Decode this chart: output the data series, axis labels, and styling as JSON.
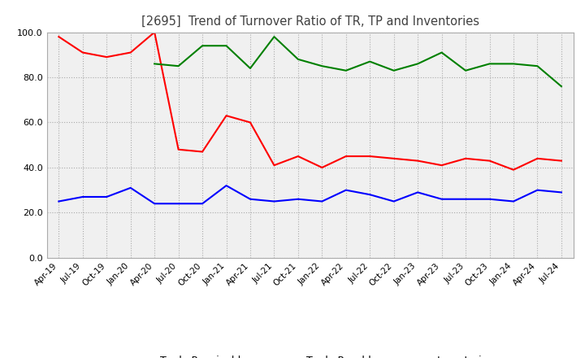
{
  "title": "[2695]  Trend of Turnover Ratio of TR, TP and Inventories",
  "x_labels": [
    "Apr-19",
    "Jul-19",
    "Oct-19",
    "Jan-20",
    "Apr-20",
    "Jul-20",
    "Oct-20",
    "Jan-21",
    "Apr-21",
    "Jul-21",
    "Oct-21",
    "Jan-22",
    "Apr-22",
    "Jul-22",
    "Oct-22",
    "Jan-23",
    "Apr-23",
    "Jul-23",
    "Oct-23",
    "Jan-24",
    "Apr-24",
    "Jul-24"
  ],
  "trade_receivables": [
    98.0,
    91.0,
    89.0,
    91.0,
    100.0,
    48.0,
    47.0,
    63.0,
    60.0,
    41.0,
    45.0,
    40.0,
    45.0,
    45.0,
    44.0,
    43.0,
    41.0,
    44.0,
    43.0,
    39.0,
    44.0,
    43.0
  ],
  "trade_payables": [
    25.0,
    27.0,
    27.0,
    31.0,
    24.0,
    24.0,
    24.0,
    32.0,
    26.0,
    25.0,
    26.0,
    25.0,
    30.0,
    28.0,
    25.0,
    29.0,
    26.0,
    26.0,
    26.0,
    25.0,
    30.0,
    29.0
  ],
  "inventories": [
    null,
    null,
    null,
    null,
    86.0,
    85.0,
    94.0,
    94.0,
    84.0,
    98.0,
    88.0,
    85.0,
    83.0,
    87.0,
    83.0,
    86.0,
    91.0,
    83.0,
    86.0,
    86.0,
    85.0,
    76.0
  ],
  "ylim": [
    0.0,
    100.0
  ],
  "yticks": [
    0.0,
    20.0,
    40.0,
    60.0,
    80.0,
    100.0
  ],
  "tr_color": "#FF0000",
  "tp_color": "#0000FF",
  "inv_color": "#008000",
  "grid_color": "#AAAAAA",
  "plot_bg_color": "#F0F0F0",
  "background_color": "#FFFFFF",
  "title_color": "#404040"
}
